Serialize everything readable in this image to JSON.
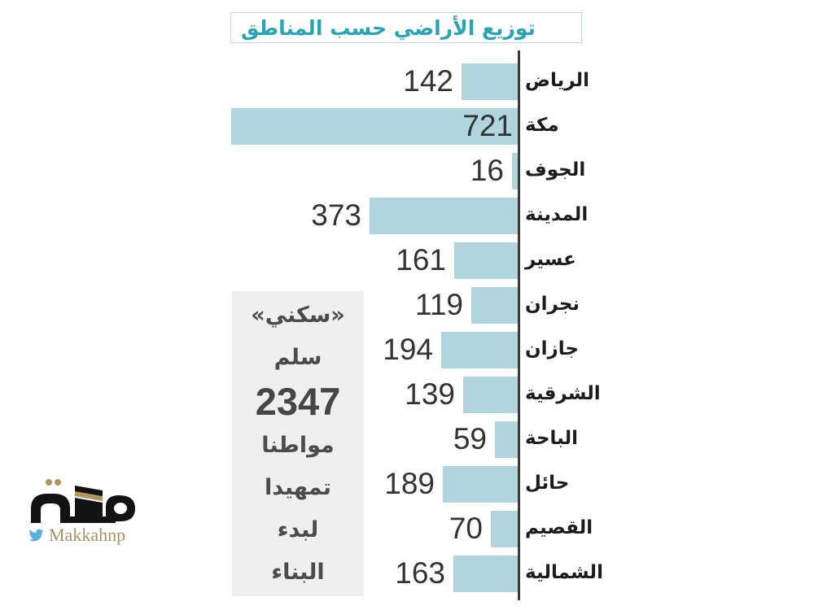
{
  "title": "توزيع الأراضي حسب المناطق",
  "chart_data": {
    "type": "bar",
    "orientation": "horizontal",
    "direction": "rtl",
    "title": "توزيع الأراضي حسب المناطق",
    "categories": [
      "الرياض",
      "مكة",
      "الجوف",
      "المدينة",
      "عسير",
      "نجران",
      "جازان",
      "الشرقية",
      "الباحة",
      "حائل",
      "القصيم",
      "الشمالية"
    ],
    "values": [
      142,
      721,
      16,
      373,
      161,
      119,
      194,
      139,
      59,
      189,
      70,
      163
    ],
    "max_value": 721,
    "value_labels_shown": true,
    "grid": false,
    "legend": false,
    "bar_color": "#b0d5dc",
    "axis_color": "#3a3a3a",
    "value_color": "#333333",
    "label_color": "#1c1c1c"
  },
  "infobox": {
    "lines": [
      "«سكني»",
      "سلم",
      "2347",
      "مواطنا",
      "تمهيدا",
      "لبدء",
      "البناء"
    ],
    "big_line_index": 2,
    "background": "#efefef",
    "text_color": "#4b4b4d"
  },
  "branding": {
    "logo_text": "مكة",
    "logo_icon": "makkah-kaaba-logo-icon",
    "twitter_icon": "twitter-bird-icon",
    "twitter_handle": "Makkahnp",
    "logo_color": "#121212",
    "gold_accent": "#b2945f",
    "twitter_blue": "#5aaede",
    "handle_color": "#a98f62"
  },
  "colors": {
    "title_teal": "#2aa3b4",
    "title_border": "#c3d9dd",
    "background": "#ffffff"
  }
}
